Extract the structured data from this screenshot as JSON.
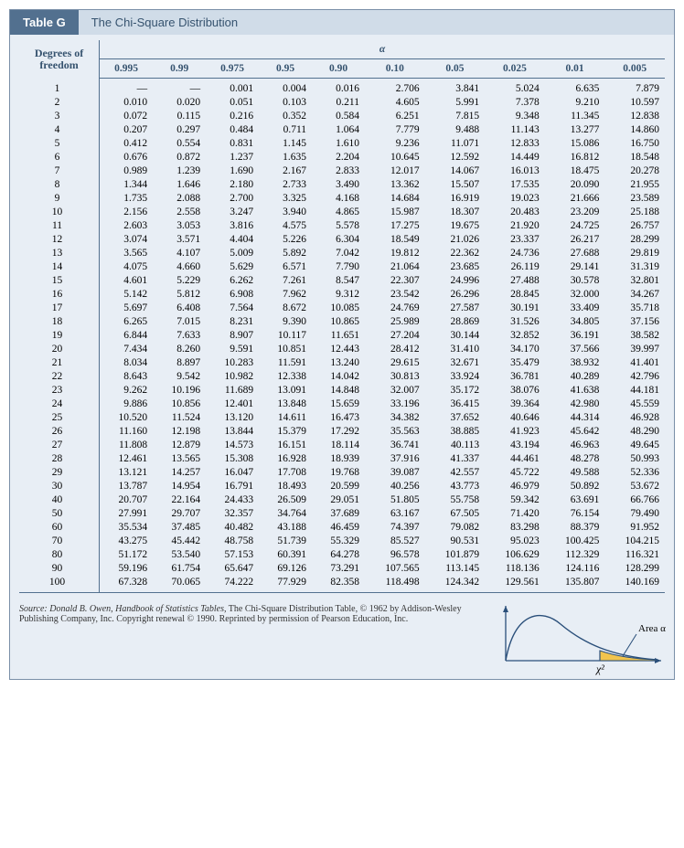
{
  "title_tab": "Table G",
  "title_text": "The Chi-Square Distribution",
  "header": {
    "dof": "Degrees of\nfreedom",
    "alpha": "α",
    "alpha_cols": [
      "0.995",
      "0.99",
      "0.975",
      "0.95",
      "0.90",
      "0.10",
      "0.05",
      "0.025",
      "0.01",
      "0.005"
    ]
  },
  "rows": [
    {
      "df": "1",
      "v": [
        "—",
        "—",
        "0.001",
        "0.004",
        "0.016",
        "2.706",
        "3.841",
        "5.024",
        "6.635",
        "7.879"
      ]
    },
    {
      "df": "2",
      "v": [
        "0.010",
        "0.020",
        "0.051",
        "0.103",
        "0.211",
        "4.605",
        "5.991",
        "7.378",
        "9.210",
        "10.597"
      ]
    },
    {
      "df": "3",
      "v": [
        "0.072",
        "0.115",
        "0.216",
        "0.352",
        "0.584",
        "6.251",
        "7.815",
        "9.348",
        "11.345",
        "12.838"
      ]
    },
    {
      "df": "4",
      "v": [
        "0.207",
        "0.297",
        "0.484",
        "0.711",
        "1.064",
        "7.779",
        "9.488",
        "11.143",
        "13.277",
        "14.860"
      ]
    },
    {
      "df": "5",
      "v": [
        "0.412",
        "0.554",
        "0.831",
        "1.145",
        "1.610",
        "9.236",
        "11.071",
        "12.833",
        "15.086",
        "16.750"
      ]
    },
    {
      "df": "6",
      "v": [
        "0.676",
        "0.872",
        "1.237",
        "1.635",
        "2.204",
        "10.645",
        "12.592",
        "14.449",
        "16.812",
        "18.548"
      ]
    },
    {
      "df": "7",
      "v": [
        "0.989",
        "1.239",
        "1.690",
        "2.167",
        "2.833",
        "12.017",
        "14.067",
        "16.013",
        "18.475",
        "20.278"
      ]
    },
    {
      "df": "8",
      "v": [
        "1.344",
        "1.646",
        "2.180",
        "2.733",
        "3.490",
        "13.362",
        "15.507",
        "17.535",
        "20.090",
        "21.955"
      ]
    },
    {
      "df": "9",
      "v": [
        "1.735",
        "2.088",
        "2.700",
        "3.325",
        "4.168",
        "14.684",
        "16.919",
        "19.023",
        "21.666",
        "23.589"
      ]
    },
    {
      "df": "10",
      "v": [
        "2.156",
        "2.558",
        "3.247",
        "3.940",
        "4.865",
        "15.987",
        "18.307",
        "20.483",
        "23.209",
        "25.188"
      ]
    },
    {
      "df": "11",
      "v": [
        "2.603",
        "3.053",
        "3.816",
        "4.575",
        "5.578",
        "17.275",
        "19.675",
        "21.920",
        "24.725",
        "26.757"
      ]
    },
    {
      "df": "12",
      "v": [
        "3.074",
        "3.571",
        "4.404",
        "5.226",
        "6.304",
        "18.549",
        "21.026",
        "23.337",
        "26.217",
        "28.299"
      ]
    },
    {
      "df": "13",
      "v": [
        "3.565",
        "4.107",
        "5.009",
        "5.892",
        "7.042",
        "19.812",
        "22.362",
        "24.736",
        "27.688",
        "29.819"
      ]
    },
    {
      "df": "14",
      "v": [
        "4.075",
        "4.660",
        "5.629",
        "6.571",
        "7.790",
        "21.064",
        "23.685",
        "26.119",
        "29.141",
        "31.319"
      ]
    },
    {
      "df": "15",
      "v": [
        "4.601",
        "5.229",
        "6.262",
        "7.261",
        "8.547",
        "22.307",
        "24.996",
        "27.488",
        "30.578",
        "32.801"
      ]
    },
    {
      "df": "16",
      "v": [
        "5.142",
        "5.812",
        "6.908",
        "7.962",
        "9.312",
        "23.542",
        "26.296",
        "28.845",
        "32.000",
        "34.267"
      ]
    },
    {
      "df": "17",
      "v": [
        "5.697",
        "6.408",
        "7.564",
        "8.672",
        "10.085",
        "24.769",
        "27.587",
        "30.191",
        "33.409",
        "35.718"
      ]
    },
    {
      "df": "18",
      "v": [
        "6.265",
        "7.015",
        "8.231",
        "9.390",
        "10.865",
        "25.989",
        "28.869",
        "31.526",
        "34.805",
        "37.156"
      ]
    },
    {
      "df": "19",
      "v": [
        "6.844",
        "7.633",
        "8.907",
        "10.117",
        "11.651",
        "27.204",
        "30.144",
        "32.852",
        "36.191",
        "38.582"
      ]
    },
    {
      "df": "20",
      "v": [
        "7.434",
        "8.260",
        "9.591",
        "10.851",
        "12.443",
        "28.412",
        "31.410",
        "34.170",
        "37.566",
        "39.997"
      ]
    },
    {
      "df": "21",
      "v": [
        "8.034",
        "8.897",
        "10.283",
        "11.591",
        "13.240",
        "29.615",
        "32.671",
        "35.479",
        "38.932",
        "41.401"
      ]
    },
    {
      "df": "22",
      "v": [
        "8.643",
        "9.542",
        "10.982",
        "12.338",
        "14.042",
        "30.813",
        "33.924",
        "36.781",
        "40.289",
        "42.796"
      ]
    },
    {
      "df": "23",
      "v": [
        "9.262",
        "10.196",
        "11.689",
        "13.091",
        "14.848",
        "32.007",
        "35.172",
        "38.076",
        "41.638",
        "44.181"
      ]
    },
    {
      "df": "24",
      "v": [
        "9.886",
        "10.856",
        "12.401",
        "13.848",
        "15.659",
        "33.196",
        "36.415",
        "39.364",
        "42.980",
        "45.559"
      ]
    },
    {
      "df": "25",
      "v": [
        "10.520",
        "11.524",
        "13.120",
        "14.611",
        "16.473",
        "34.382",
        "37.652",
        "40.646",
        "44.314",
        "46.928"
      ]
    },
    {
      "df": "26",
      "v": [
        "11.160",
        "12.198",
        "13.844",
        "15.379",
        "17.292",
        "35.563",
        "38.885",
        "41.923",
        "45.642",
        "48.290"
      ]
    },
    {
      "df": "27",
      "v": [
        "11.808",
        "12.879",
        "14.573",
        "16.151",
        "18.114",
        "36.741",
        "40.113",
        "43.194",
        "46.963",
        "49.645"
      ]
    },
    {
      "df": "28",
      "v": [
        "12.461",
        "13.565",
        "15.308",
        "16.928",
        "18.939",
        "37.916",
        "41.337",
        "44.461",
        "48.278",
        "50.993"
      ]
    },
    {
      "df": "29",
      "v": [
        "13.121",
        "14.257",
        "16.047",
        "17.708",
        "19.768",
        "39.087",
        "42.557",
        "45.722",
        "49.588",
        "52.336"
      ]
    },
    {
      "df": "30",
      "v": [
        "13.787",
        "14.954",
        "16.791",
        "18.493",
        "20.599",
        "40.256",
        "43.773",
        "46.979",
        "50.892",
        "53.672"
      ]
    },
    {
      "df": "40",
      "v": [
        "20.707",
        "22.164",
        "24.433",
        "26.509",
        "29.051",
        "51.805",
        "55.758",
        "59.342",
        "63.691",
        "66.766"
      ]
    },
    {
      "df": "50",
      "v": [
        "27.991",
        "29.707",
        "32.357",
        "34.764",
        "37.689",
        "63.167",
        "67.505",
        "71.420",
        "76.154",
        "79.490"
      ]
    },
    {
      "df": "60",
      "v": [
        "35.534",
        "37.485",
        "40.482",
        "43.188",
        "46.459",
        "74.397",
        "79.082",
        "83.298",
        "88.379",
        "91.952"
      ]
    },
    {
      "df": "70",
      "v": [
        "43.275",
        "45.442",
        "48.758",
        "51.739",
        "55.329",
        "85.527",
        "90.531",
        "95.023",
        "100.425",
        "104.215"
      ]
    },
    {
      "df": "80",
      "v": [
        "51.172",
        "53.540",
        "57.153",
        "60.391",
        "64.278",
        "96.578",
        "101.879",
        "106.629",
        "112.329",
        "116.321"
      ]
    },
    {
      "df": "90",
      "v": [
        "59.196",
        "61.754",
        "65.647",
        "69.126",
        "73.291",
        "107.565",
        "113.145",
        "118.136",
        "124.116",
        "128.299"
      ]
    },
    {
      "df": "100",
      "v": [
        "67.328",
        "70.065",
        "74.222",
        "77.929",
        "82.358",
        "118.498",
        "124.342",
        "129.561",
        "135.807",
        "140.169"
      ]
    }
  ],
  "source_pre": "Source: Donald B. Owen, ",
  "source_em": "Handbook of Statistics Tables,",
  "source_post": " The Chi-Square Distribution Table, © 1962 by Addison-Wesley Publishing Company, Inc. Copyright renewal © 1990. Reprinted by permission of Pearson Education, Inc.",
  "diagram": {
    "area_label": "Area α",
    "x_label": "χ²",
    "curve_color": "#2a4f7a",
    "fill_color": "#f2c44d",
    "axis_color": "#2a4f7a"
  }
}
